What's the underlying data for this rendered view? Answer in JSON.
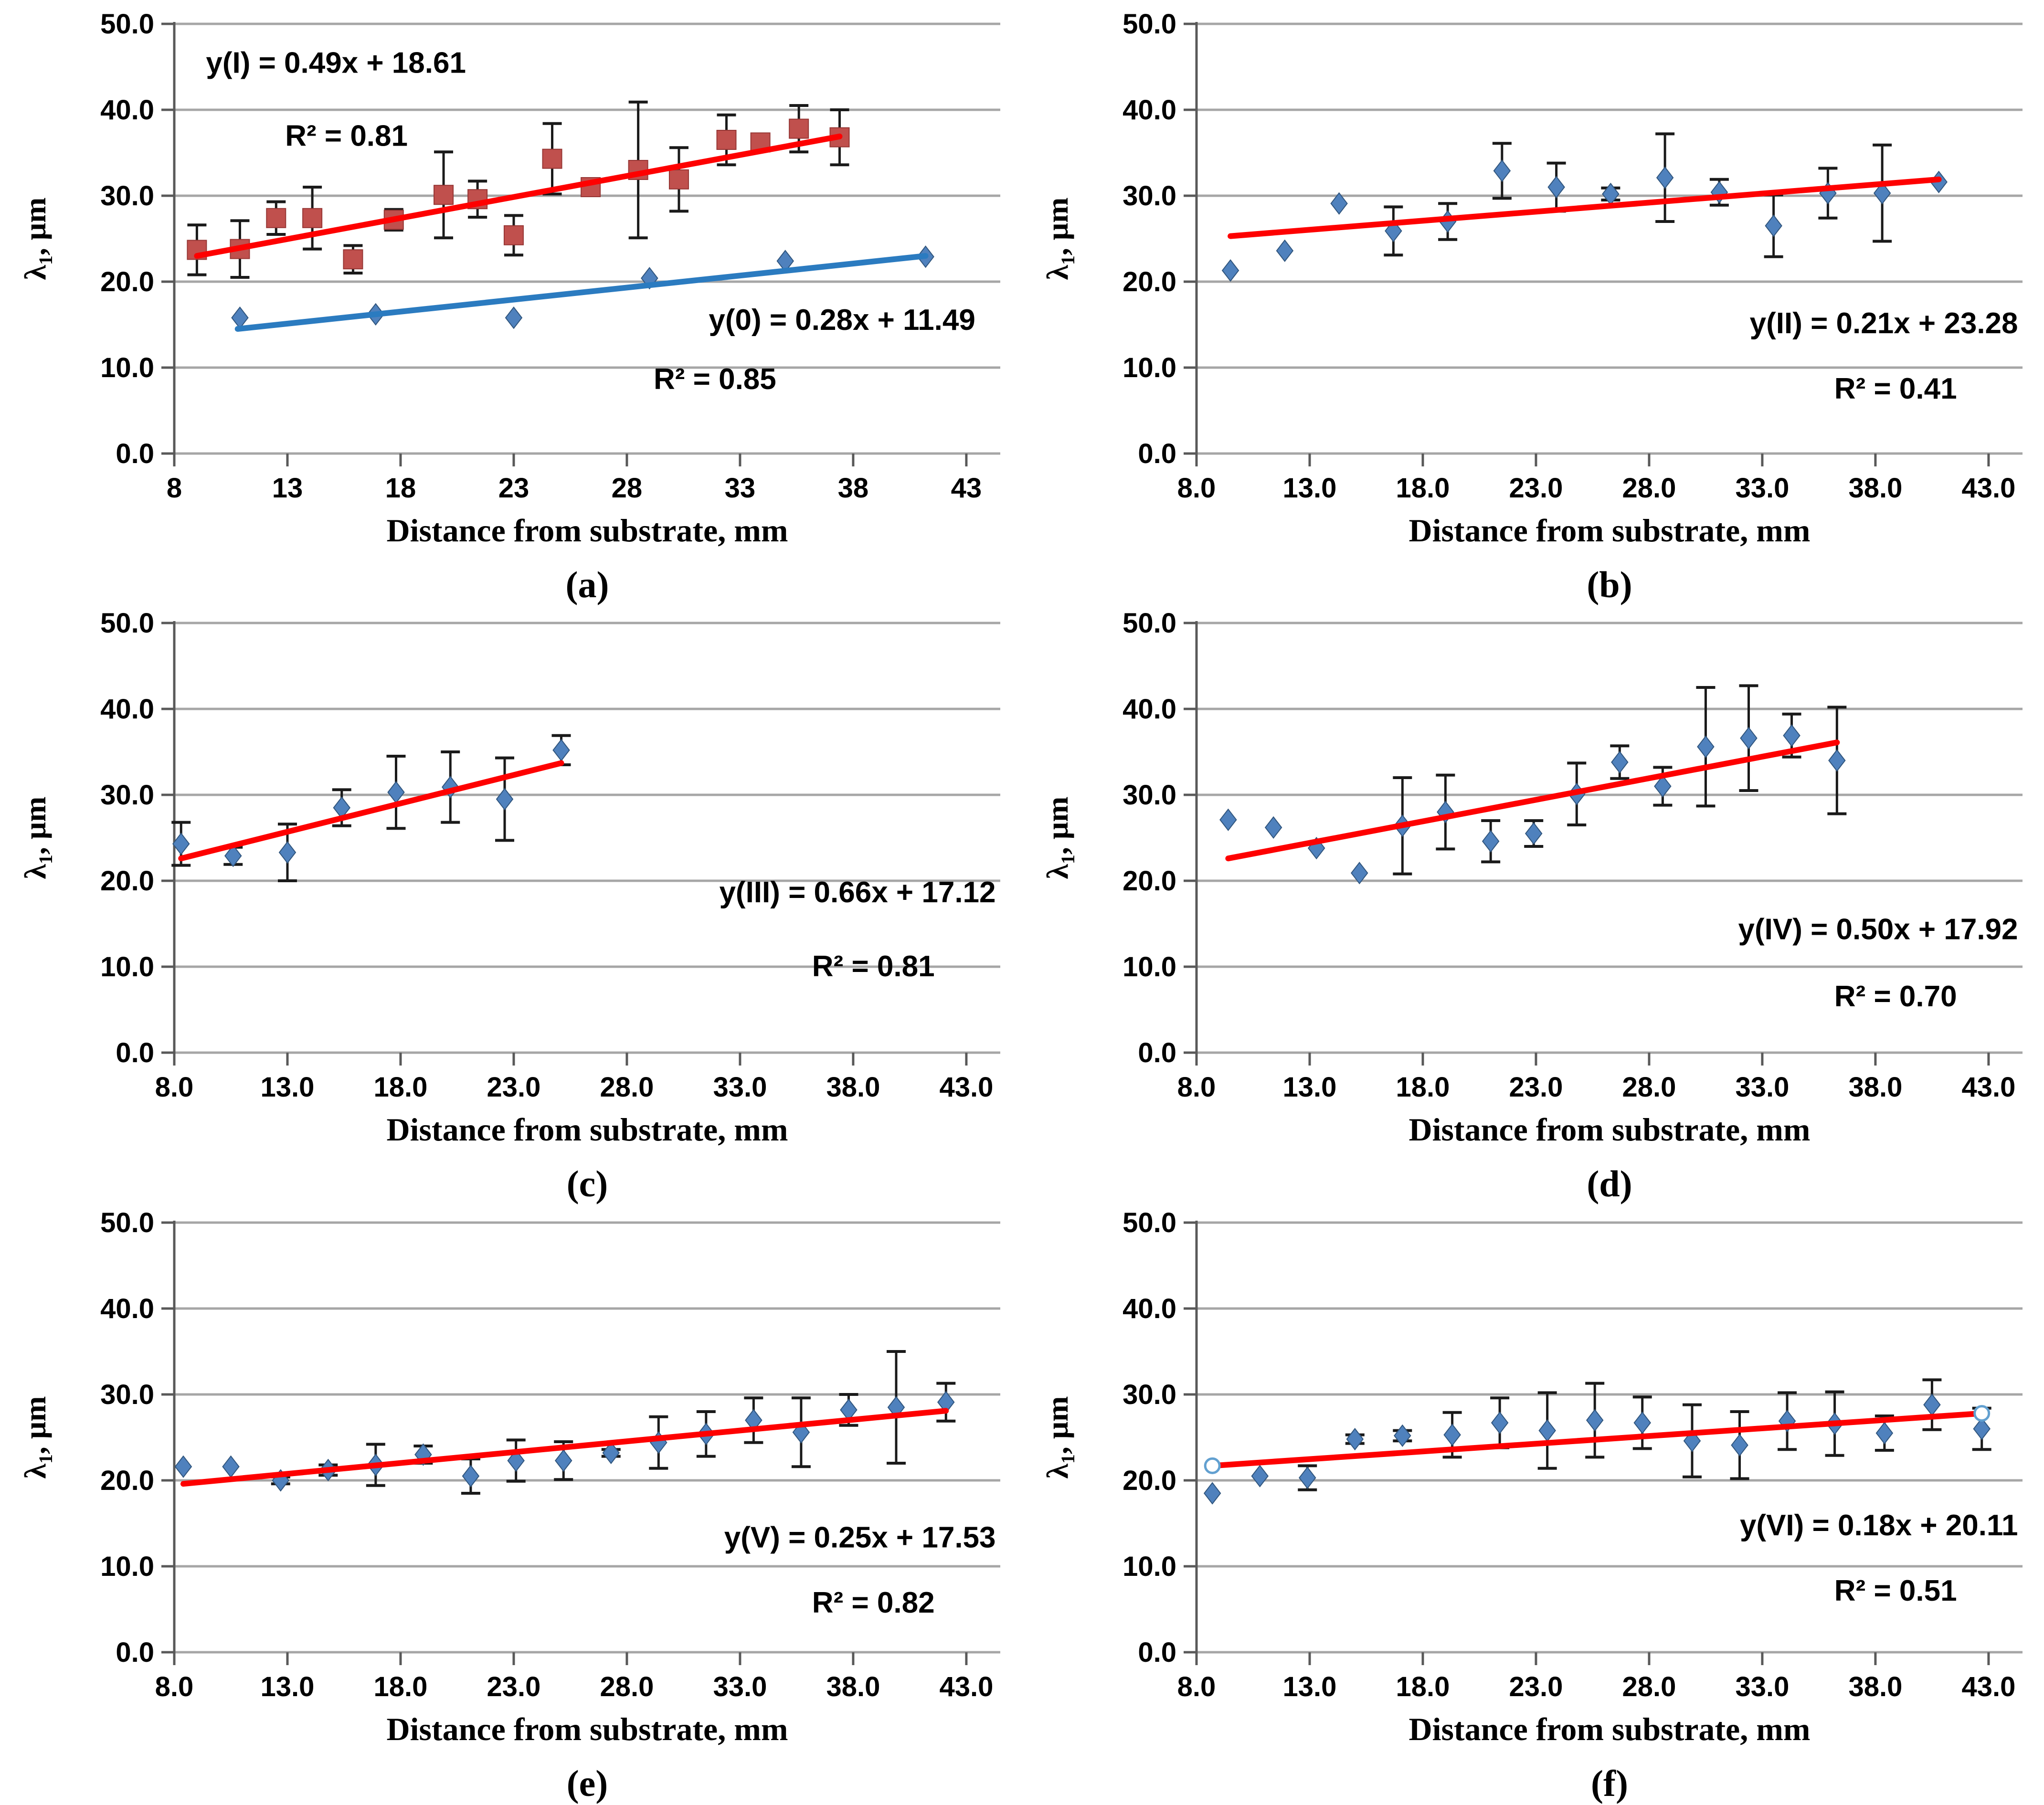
{
  "figure_title": "Six-panel scatter figure of lambda-1 vs distance from substrate",
  "style": {
    "background": "#ffffff",
    "grid_color": "#a6a6a6",
    "axis_color": "#595959",
    "error_bar_color": "#1a1a1a",
    "text_color": "#000000",
    "red_marker": "#c0504d",
    "red_marker_edge": "#963634",
    "red_trend": "#fe0000",
    "blue_marker": "#4f81bd",
    "blue_marker_edge": "#30557d",
    "blue_trend": "#2b7bc0",
    "open_circle_stroke": "#62a0d0"
  },
  "axis": {
    "ylabel_lambda": "λ",
    "ylabel_sub": "1",
    "ylabel_rest": ", μm",
    "xlabel": "Distance from substrate, mm"
  },
  "chart_data": [
    {
      "id": "a",
      "caption": "(a)",
      "type": "scatter",
      "xlabel": "Distance from substrate, mm",
      "ylabel": "λ1, μm",
      "xlim": [
        8,
        44.5
      ],
      "ylim": [
        0,
        50
      ],
      "grid": true,
      "xtick_values": [
        8,
        13,
        18,
        23,
        28,
        33,
        38,
        43
      ],
      "xtick_labels": [
        "8",
        "13",
        "18",
        "23",
        "28",
        "33",
        "38",
        "43"
      ],
      "ytick_values": [
        0,
        10,
        20,
        30,
        40,
        50
      ],
      "ytick_labels": [
        "0.0",
        "10.0",
        "20.0",
        "30.0",
        "40.0",
        "50.0"
      ],
      "series": [
        {
          "name": "I",
          "marker": "square",
          "marker_color": "#c0504d",
          "marker_edge": "#963634",
          "trend_color": "#fe0000",
          "equation": "y(I) = 0.49x + 18.61",
          "r2": "R² = 0.81",
          "points": [
            [
              9.0,
              23.7,
              2.9
            ],
            [
              10.9,
              23.8,
              3.3
            ],
            [
              12.5,
              27.4,
              1.9
            ],
            [
              14.1,
              27.4,
              3.6
            ],
            [
              15.9,
              22.6,
              1.6
            ],
            [
              17.7,
              27.2,
              1.2
            ],
            [
              19.9,
              30.1,
              5.0
            ],
            [
              21.4,
              29.6,
              2.1
            ],
            [
              23.0,
              25.4,
              2.3
            ],
            [
              24.7,
              34.3,
              4.1
            ],
            [
              26.4,
              31.0,
              0
            ],
            [
              28.5,
              33.0,
              7.9
            ],
            [
              30.3,
              31.9,
              3.7
            ],
            [
              32.4,
              36.5,
              2.9
            ],
            [
              33.9,
              36.2,
              0
            ],
            [
              35.6,
              37.8,
              2.7
            ],
            [
              37.4,
              36.8,
              3.2
            ]
          ],
          "trend": {
            "x1": 9.0,
            "y1": 23.0,
            "x2": 37.4,
            "y2": 36.9
          }
        },
        {
          "name": "0",
          "marker": "diamond",
          "marker_color": "#4f81bd",
          "marker_edge": "#30557d",
          "trend_color": "#2b7bc0",
          "equation": "y(0) = 0.28x + 11.49",
          "r2": "R² = 0.85",
          "points": [
            [
              10.9,
              15.8,
              0
            ],
            [
              16.9,
              16.2,
              0
            ],
            [
              23.0,
              15.8,
              0
            ],
            [
              29.0,
              20.4,
              0
            ],
            [
              35.0,
              22.4,
              0
            ],
            [
              41.2,
              22.9,
              0
            ]
          ],
          "trend": {
            "x1": 10.8,
            "y1": 14.5,
            "x2": 41.2,
            "y2": 23.0
          }
        }
      ],
      "annotations": [
        {
          "text": "y(I) = 0.49x + 18.61",
          "x": 9.4,
          "y": 44.3,
          "anchor": "start"
        },
        {
          "text": "R² = 0.81",
          "x": 12.9,
          "y": 35.8,
          "anchor": "start"
        },
        {
          "text": "y(0) = 0.28x + 11.49",
          "x": 43.4,
          "y": 14.4,
          "anchor": "end"
        },
        {
          "text": "R² = 0.85",
          "x": 34.6,
          "y": 7.5,
          "anchor": "end"
        }
      ]
    },
    {
      "id": "b",
      "caption": "(b)",
      "type": "scatter",
      "xlabel": "Distance from substrate, mm",
      "ylabel": "λ1, μm",
      "xlim": [
        8,
        44.5
      ],
      "ylim": [
        0,
        50
      ],
      "grid": true,
      "xtick_values": [
        8,
        13,
        18,
        23,
        28,
        33,
        38,
        43
      ],
      "xtick_labels": [
        "8.0",
        "13.0",
        "18.0",
        "23.0",
        "28.0",
        "33.0",
        "38.0",
        "43.0"
      ],
      "ytick_values": [
        0,
        10,
        20,
        30,
        40,
        50
      ],
      "ytick_labels": [
        "0.0",
        "10.0",
        "20.0",
        "30.0",
        "40.0",
        "50.0"
      ],
      "series": [
        {
          "name": "II",
          "marker": "diamond",
          "marker_color": "#4f81bd",
          "marker_edge": "#30557d",
          "trend_color": "#fe0000",
          "equation": "y(II) = 0.21x + 23.28",
          "r2": "R² = 0.41",
          "points": [
            [
              9.5,
              21.3,
              0
            ],
            [
              11.9,
              23.6,
              0
            ],
            [
              14.3,
              29.1,
              0
            ],
            [
              16.7,
              25.9,
              2.8
            ],
            [
              19.1,
              27.0,
              2.1
            ],
            [
              21.5,
              32.9,
              3.2
            ],
            [
              23.9,
              31.0,
              2.8
            ],
            [
              26.3,
              30.2,
              0.7
            ],
            [
              28.7,
              32.1,
              5.1
            ],
            [
              31.1,
              30.4,
              1.5
            ],
            [
              33.5,
              26.5,
              3.6
            ],
            [
              35.9,
              30.3,
              2.9
            ],
            [
              38.3,
              30.3,
              5.6
            ],
            [
              40.8,
              31.6,
              0
            ]
          ],
          "trend": {
            "x1": 9.5,
            "y1": 25.3,
            "x2": 40.8,
            "y2": 31.9
          }
        }
      ],
      "annotations": [
        {
          "text": "y(II) = 0.21x + 23.28",
          "x": 44.3,
          "y": 14.0,
          "anchor": "end"
        },
        {
          "text": "R² = 0.41",
          "x": 41.6,
          "y": 6.4,
          "anchor": "end"
        }
      ]
    },
    {
      "id": "c",
      "caption": "(c)",
      "type": "scatter",
      "xlabel": "Distance from substrate, mm",
      "ylabel": "λ1, μm",
      "xlim": [
        8,
        44.5
      ],
      "ylim": [
        0,
        50
      ],
      "grid": true,
      "xtick_values": [
        8,
        13,
        18,
        23,
        28,
        33,
        38,
        43
      ],
      "xtick_labels": [
        "8.0",
        "13.0",
        "18.0",
        "23.0",
        "28.0",
        "33.0",
        "38.0",
        "43.0"
      ],
      "ytick_values": [
        0,
        10,
        20,
        30,
        40,
        50
      ],
      "ytick_labels": [
        "0.0",
        "10.0",
        "20.0",
        "30.0",
        "40.0",
        "50.0"
      ],
      "series": [
        {
          "name": "III",
          "marker": "diamond",
          "marker_color": "#4f81bd",
          "marker_edge": "#30557d",
          "trend_color": "#fe0000",
          "equation": "y(III) = 0.66x + 17.12",
          "r2": "R² = 0.81",
          "points": [
            [
              8.3,
              24.3,
              2.5
            ],
            [
              10.6,
              22.9,
              1.0
            ],
            [
              13.0,
              23.3,
              3.3
            ],
            [
              15.4,
              28.5,
              2.1
            ],
            [
              17.8,
              30.3,
              4.2
            ],
            [
              20.2,
              30.9,
              4.1
            ],
            [
              22.6,
              29.5,
              4.8
            ],
            [
              25.1,
              35.2,
              1.7
            ]
          ],
          "trend": {
            "x1": 8.3,
            "y1": 22.6,
            "x2": 25.1,
            "y2": 33.7
          }
        }
      ],
      "annotations": [
        {
          "text": "y(III) = 0.66x + 17.12",
          "x": 44.3,
          "y": 17.5,
          "anchor": "end"
        },
        {
          "text": "R² = 0.81",
          "x": 41.6,
          "y": 8.9,
          "anchor": "end"
        }
      ]
    },
    {
      "id": "d",
      "caption": "(d)",
      "type": "scatter",
      "xlabel": "Distance from substrate, mm",
      "ylabel": "λ1, μm",
      "xlim": [
        8,
        44.5
      ],
      "ylim": [
        0,
        50
      ],
      "grid": true,
      "xtick_values": [
        8,
        13,
        18,
        23,
        28,
        33,
        38,
        43
      ],
      "xtick_labels": [
        "8.0",
        "13.0",
        "18.0",
        "23.0",
        "28.0",
        "33.0",
        "38.0",
        "43.0"
      ],
      "ytick_values": [
        0,
        10,
        20,
        30,
        40,
        50
      ],
      "ytick_labels": [
        "0.0",
        "10.0",
        "20.0",
        "30.0",
        "40.0",
        "50.0"
      ],
      "series": [
        {
          "name": "IV",
          "marker": "diamond",
          "marker_color": "#4f81bd",
          "marker_edge": "#30557d",
          "trend_color": "#fe0000",
          "equation": "y(IV) = 0.50x + 17.92",
          "r2": "R² = 0.70",
          "points": [
            [
              9.4,
              27.1,
              0
            ],
            [
              11.4,
              26.2,
              0
            ],
            [
              13.3,
              23.8,
              0
            ],
            [
              15.2,
              20.9,
              0
            ],
            [
              17.1,
              26.4,
              5.6
            ],
            [
              19.0,
              28.0,
              4.3
            ],
            [
              21.0,
              24.6,
              2.4
            ],
            [
              22.9,
              25.5,
              1.5
            ],
            [
              24.8,
              30.1,
              3.6
            ],
            [
              26.7,
              33.8,
              1.9
            ],
            [
              28.6,
              31.0,
              2.2
            ],
            [
              30.5,
              35.6,
              6.9
            ],
            [
              32.4,
              36.6,
              6.1
            ],
            [
              34.3,
              36.9,
              2.5
            ],
            [
              36.3,
              34.0,
              6.2
            ]
          ],
          "trend": {
            "x1": 9.4,
            "y1": 22.6,
            "x2": 36.3,
            "y2": 36.1
          }
        }
      ],
      "annotations": [
        {
          "text": "y(IV) = 0.50x + 17.92",
          "x": 44.3,
          "y": 13.2,
          "anchor": "end"
        },
        {
          "text": "R² = 0.70",
          "x": 41.6,
          "y": 5.4,
          "anchor": "end"
        }
      ]
    },
    {
      "id": "e",
      "caption": "(e)",
      "type": "scatter",
      "xlabel": "Distance from substrate, mm",
      "ylabel": "λ1, μm",
      "xlim": [
        8,
        44.5
      ],
      "ylim": [
        0,
        50
      ],
      "grid": true,
      "xtick_values": [
        8,
        13,
        18,
        23,
        28,
        33,
        38,
        43
      ],
      "xtick_labels": [
        "8.0",
        "13.0",
        "18.0",
        "23.0",
        "28.0",
        "33.0",
        "38.0",
        "43.0"
      ],
      "ytick_values": [
        0,
        10,
        20,
        30,
        40,
        50
      ],
      "ytick_labels": [
        "0.0",
        "10.0",
        "20.0",
        "30.0",
        "40.0",
        "50.0"
      ],
      "series": [
        {
          "name": "V",
          "marker": "diamond",
          "marker_color": "#4f81bd",
          "marker_edge": "#30557d",
          "trend_color": "#fe0000",
          "equation": "y(V) = 0.25x + 17.53",
          "r2": "R² = 0.82",
          "points": [
            [
              8.4,
              21.6,
              0
            ],
            [
              10.5,
              21.6,
              0
            ],
            [
              12.7,
              20.0,
              0.4
            ],
            [
              14.8,
              21.2,
              0.6
            ],
            [
              16.9,
              21.8,
              2.4
            ],
            [
              19.0,
              23.0,
              1.0
            ],
            [
              21.1,
              20.5,
              2.0
            ],
            [
              23.1,
              22.3,
              2.4
            ],
            [
              25.2,
              22.3,
              2.2
            ],
            [
              27.3,
              23.2,
              0.4
            ],
            [
              29.4,
              24.4,
              3.0
            ],
            [
              31.5,
              25.4,
              2.6
            ],
            [
              33.6,
              27.0,
              2.6
            ],
            [
              35.7,
              25.6,
              4.0
            ],
            [
              37.8,
              28.2,
              1.8
            ],
            [
              39.9,
              28.5,
              6.5
            ],
            [
              42.1,
              29.1,
              2.2
            ]
          ],
          "trend": {
            "x1": 8.4,
            "y1": 19.6,
            "x2": 42.1,
            "y2": 28.1
          }
        }
      ],
      "annotations": [
        {
          "text": "y(V) = 0.25x + 17.53",
          "x": 44.3,
          "y": 12.2,
          "anchor": "end"
        },
        {
          "text": "R² = 0.82",
          "x": 41.6,
          "y": 4.6,
          "anchor": "end"
        }
      ]
    },
    {
      "id": "f",
      "caption": "(f)",
      "type": "scatter",
      "xlabel": "Distance from substrate, mm",
      "ylabel": "λ1, μm",
      "xlim": [
        8,
        44.5
      ],
      "ylim": [
        0,
        50
      ],
      "grid": true,
      "xtick_values": [
        8,
        13,
        18,
        23,
        28,
        33,
        38,
        43
      ],
      "xtick_labels": [
        "8.0",
        "13.0",
        "18.0",
        "23.0",
        "28.0",
        "33.0",
        "38.0",
        "43.0"
      ],
      "ytick_values": [
        0,
        10,
        20,
        30,
        40,
        50
      ],
      "ytick_labels": [
        "0.0",
        "10.0",
        "20.0",
        "30.0",
        "40.0",
        "50.0"
      ],
      "series": [
        {
          "name": "VI",
          "marker": "diamond",
          "marker_color": "#4f81bd",
          "marker_edge": "#30557d",
          "trend_color": "#fe0000",
          "equation": "y(VI) = 0.18x + 20.11",
          "r2": "R² = 0.51",
          "points": [
            [
              8.7,
              18.5,
              0
            ],
            [
              10.8,
              20.5,
              0
            ],
            [
              12.9,
              20.3,
              1.4
            ],
            [
              15.0,
              24.8,
              0.5
            ],
            [
              17.1,
              25.2,
              0.6
            ],
            [
              19.3,
              25.3,
              2.6
            ],
            [
              21.4,
              26.7,
              2.9
            ],
            [
              23.5,
              25.8,
              4.4
            ],
            [
              25.6,
              27.0,
              4.3
            ],
            [
              27.7,
              26.7,
              3.0
            ],
            [
              29.9,
              24.6,
              4.2
            ],
            [
              32.0,
              24.1,
              3.9
            ],
            [
              34.1,
              26.9,
              3.3
            ],
            [
              36.2,
              26.6,
              3.7
            ],
            [
              38.4,
              25.5,
              2.0
            ],
            [
              40.5,
              28.8,
              2.9
            ],
            [
              42.7,
              26.0,
              2.4
            ]
          ],
          "trend": {
            "x1": 8.7,
            "y1": 21.7,
            "x2": 42.7,
            "y2": 27.8,
            "end_markers": true
          }
        }
      ],
      "annotations": [
        {
          "text": "y(VI) = 0.18x + 20.11",
          "x": 44.3,
          "y": 13.6,
          "anchor": "end"
        },
        {
          "text": "R² = 0.51",
          "x": 41.6,
          "y": 6.0,
          "anchor": "end"
        }
      ]
    }
  ]
}
